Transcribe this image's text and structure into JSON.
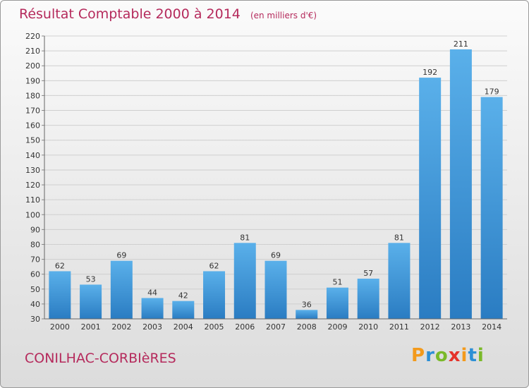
{
  "header": {
    "title": "Résultat Comptable 2000 à 2014",
    "unit": "(en milliers d'€)"
  },
  "footer": {
    "commune": "CONILHAC-CORBIèRES",
    "logo_text": "Proxiti"
  },
  "colors": {
    "title": "#b52a5c",
    "bar_light": "#5ab0ea",
    "bar_dark": "#2a7cc2",
    "grid": "#cfcfcf"
  },
  "chart_data": {
    "type": "bar",
    "title": "Résultat Comptable 2000 à 2014",
    "subtitle": "(en milliers d'€)",
    "xlabel": "",
    "ylabel": "",
    "categories": [
      "2000",
      "2001",
      "2002",
      "2003",
      "2004",
      "2005",
      "2006",
      "2007",
      "2008",
      "2009",
      "2010",
      "2011",
      "2012",
      "2013",
      "2014"
    ],
    "values": [
      62,
      53,
      69,
      44,
      42,
      62,
      81,
      69,
      36,
      51,
      57,
      81,
      192,
      211,
      179
    ],
    "ylim": [
      30,
      220
    ],
    "ytick_step": 10,
    "grid": true
  }
}
